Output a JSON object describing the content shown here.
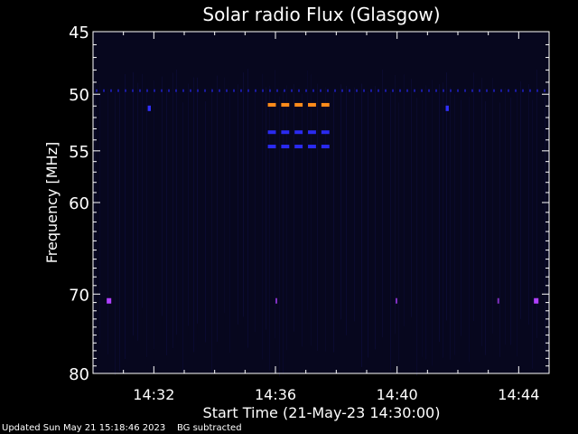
{
  "chart_data": {
    "type": "heatmap",
    "title": "Solar radio Flux (Glasgow)",
    "xlabel": "Start Time (21-May-23 14:30:00)",
    "ylabel": "Frequency [MHz]",
    "x_ticks": [
      "14:32",
      "14:36",
      "14:40",
      "14:44"
    ],
    "x_tick_minutes": [
      32,
      36,
      40,
      44
    ],
    "x_range_minutes": [
      30.0,
      45.0
    ],
    "y_ticks": [
      45,
      50,
      55,
      60,
      70,
      80
    ],
    "y_range": [
      45,
      80
    ],
    "y_scale": "log",
    "background_colors": {
      "plot": "#07071e",
      "axes": "#ffffff"
    },
    "features": [
      {
        "name": "band",
        "freq": 49.7,
        "t_start": 30.0,
        "t_end": 45.0,
        "color": "#1a1aa0",
        "kind": "dotted"
      },
      {
        "name": "burst",
        "freq": 50.9,
        "t_start": 35.75,
        "t_end": 37.95,
        "color": "#ff8c1a",
        "kind": "dashed"
      },
      {
        "name": "line",
        "freq": 53.3,
        "t_start": 35.75,
        "t_end": 37.95,
        "color": "#2a2af0",
        "kind": "dashed"
      },
      {
        "name": "line",
        "freq": 54.6,
        "t_start": 35.75,
        "t_end": 37.95,
        "color": "#2a2af0",
        "kind": "dashed"
      },
      {
        "name": "spot",
        "freq": 51.2,
        "t_start": 31.8,
        "t_end": 31.9,
        "color": "#3030ff",
        "kind": "spot"
      },
      {
        "name": "spot",
        "freq": 51.2,
        "t_start": 41.6,
        "t_end": 41.7,
        "color": "#3030ff",
        "kind": "spot"
      },
      {
        "name": "spot",
        "freq": 70.8,
        "t_start": 30.45,
        "t_end": 30.6,
        "color": "#b040ff",
        "kind": "spot"
      },
      {
        "name": "spot",
        "freq": 70.8,
        "t_start": 36.0,
        "t_end": 36.05,
        "color": "#8030c0",
        "kind": "spot"
      },
      {
        "name": "spot",
        "freq": 70.8,
        "t_start": 39.95,
        "t_end": 40.0,
        "color": "#8030c0",
        "kind": "spot"
      },
      {
        "name": "spot",
        "freq": 70.8,
        "t_start": 43.3,
        "t_end": 43.35,
        "color": "#8030c0",
        "kind": "spot"
      },
      {
        "name": "spot",
        "freq": 70.8,
        "t_start": 44.5,
        "t_end": 44.65,
        "color": "#b040ff",
        "kind": "spot"
      }
    ]
  },
  "footer": {
    "updated": "Updated Sun May 21 15:18:46 2023",
    "note": "BG subtracted"
  }
}
